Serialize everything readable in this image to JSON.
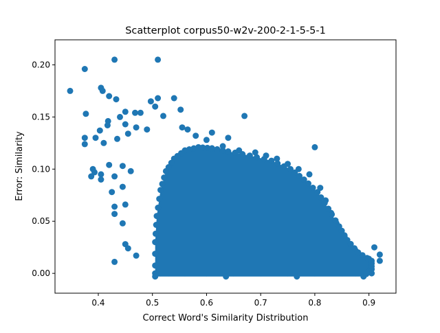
{
  "chart_data": {
    "type": "scatter",
    "title": "Scatterplot corpus50-w2v-200-2-1-5-5-1",
    "xlabel": "Correct Word's Similarity Distribution",
    "ylabel": "Error: Similarity",
    "xlim": [
      0.32,
      0.95
    ],
    "ylim": [
      -0.019,
      0.224
    ],
    "xticks": [
      0.4,
      0.5,
      0.6,
      0.7,
      0.8,
      0.9
    ],
    "xtick_labels": [
      "0.4",
      "0.5",
      "0.6",
      "0.7",
      "0.8",
      "0.9"
    ],
    "yticks": [
      0.0,
      0.05,
      0.1,
      0.15,
      0.2
    ],
    "ytick_labels": [
      "0.00",
      "0.05",
      "0.10",
      "0.15",
      "0.20"
    ],
    "grid": false,
    "legend": "none",
    "marker_color": "#1f77b4",
    "series": [
      {
        "points": [
          [
            0.348,
            0.175
          ],
          [
            0.375,
            0.196
          ],
          [
            0.43,
            0.205
          ],
          [
            0.51,
            0.205
          ],
          [
            0.405,
            0.178
          ],
          [
            0.408,
            0.175
          ],
          [
            0.42,
            0.17
          ],
          [
            0.433,
            0.167
          ],
          [
            0.377,
            0.153
          ],
          [
            0.45,
            0.155
          ],
          [
            0.468,
            0.154
          ],
          [
            0.478,
            0.154
          ],
          [
            0.497,
            0.165
          ],
          [
            0.51,
            0.168
          ],
          [
            0.505,
            0.16
          ],
          [
            0.54,
            0.168
          ],
          [
            0.552,
            0.157
          ],
          [
            0.67,
            0.151
          ],
          [
            0.52,
            0.151
          ],
          [
            0.44,
            0.15
          ],
          [
            0.418,
            0.146
          ],
          [
            0.417,
            0.142
          ],
          [
            0.403,
            0.137
          ],
          [
            0.375,
            0.13
          ],
          [
            0.375,
            0.124
          ],
          [
            0.395,
            0.13
          ],
          [
            0.41,
            0.125
          ],
          [
            0.435,
            0.129
          ],
          [
            0.45,
            0.143
          ],
          [
            0.455,
            0.134
          ],
          [
            0.47,
            0.14
          ],
          [
            0.49,
            0.138
          ],
          [
            0.8,
            0.121
          ],
          [
            0.39,
            0.1
          ],
          [
            0.393,
            0.097
          ],
          [
            0.387,
            0.093
          ],
          [
            0.405,
            0.095
          ],
          [
            0.405,
            0.09
          ],
          [
            0.42,
            0.104
          ],
          [
            0.43,
            0.093
          ],
          [
            0.425,
            0.078
          ],
          [
            0.445,
            0.083
          ],
          [
            0.45,
            0.066
          ],
          [
            0.43,
            0.064
          ],
          [
            0.43,
            0.057
          ],
          [
            0.445,
            0.048
          ],
          [
            0.45,
            0.028
          ],
          [
            0.455,
            0.024
          ],
          [
            0.47,
            0.017
          ],
          [
            0.43,
            0.011
          ],
          [
            0.445,
            0.103
          ],
          [
            0.46,
            0.098
          ],
          [
            0.88,
            0.02
          ],
          [
            0.91,
            0.025
          ],
          [
            0.92,
            0.018
          ],
          [
            0.92,
            0.012
          ],
          [
            0.865,
            0.025
          ],
          [
            0.875,
            0.022
          ],
          [
            0.9,
            0.014
          ],
          [
            0.855,
            0.035
          ],
          [
            0.84,
            0.048
          ],
          [
            0.83,
            0.058
          ],
          [
            0.82,
            0.07
          ],
          [
            0.81,
            0.082
          ],
          [
            0.79,
            0.095
          ],
          [
            0.77,
            0.1
          ],
          [
            0.75,
            0.105
          ],
          [
            0.73,
            0.11
          ],
          [
            0.71,
            0.113
          ],
          [
            0.69,
            0.116
          ],
          [
            0.66,
            0.118
          ],
          [
            0.63,
            0.122
          ],
          [
            0.6,
            0.128
          ],
          [
            0.58,
            0.132
          ],
          [
            0.565,
            0.138
          ],
          [
            0.555,
            0.14
          ],
          [
            0.61,
            0.135
          ],
          [
            0.64,
            0.13
          ],
          [
            0.505,
            0.0
          ],
          [
            0.515,
            0.0
          ],
          [
            0.53,
            0.0
          ],
          [
            0.56,
            0.0
          ],
          [
            0.6,
            0.0
          ],
          [
            0.65,
            0.0
          ],
          [
            0.7,
            0.0
          ],
          [
            0.75,
            0.0
          ],
          [
            0.8,
            0.0
          ],
          [
            0.85,
            0.0
          ],
          [
            0.875,
            0.0
          ],
          [
            0.885,
            0.0
          ],
          [
            0.895,
            0.0
          ],
          [
            0.905,
            0.0
          ]
        ]
      }
    ]
  }
}
